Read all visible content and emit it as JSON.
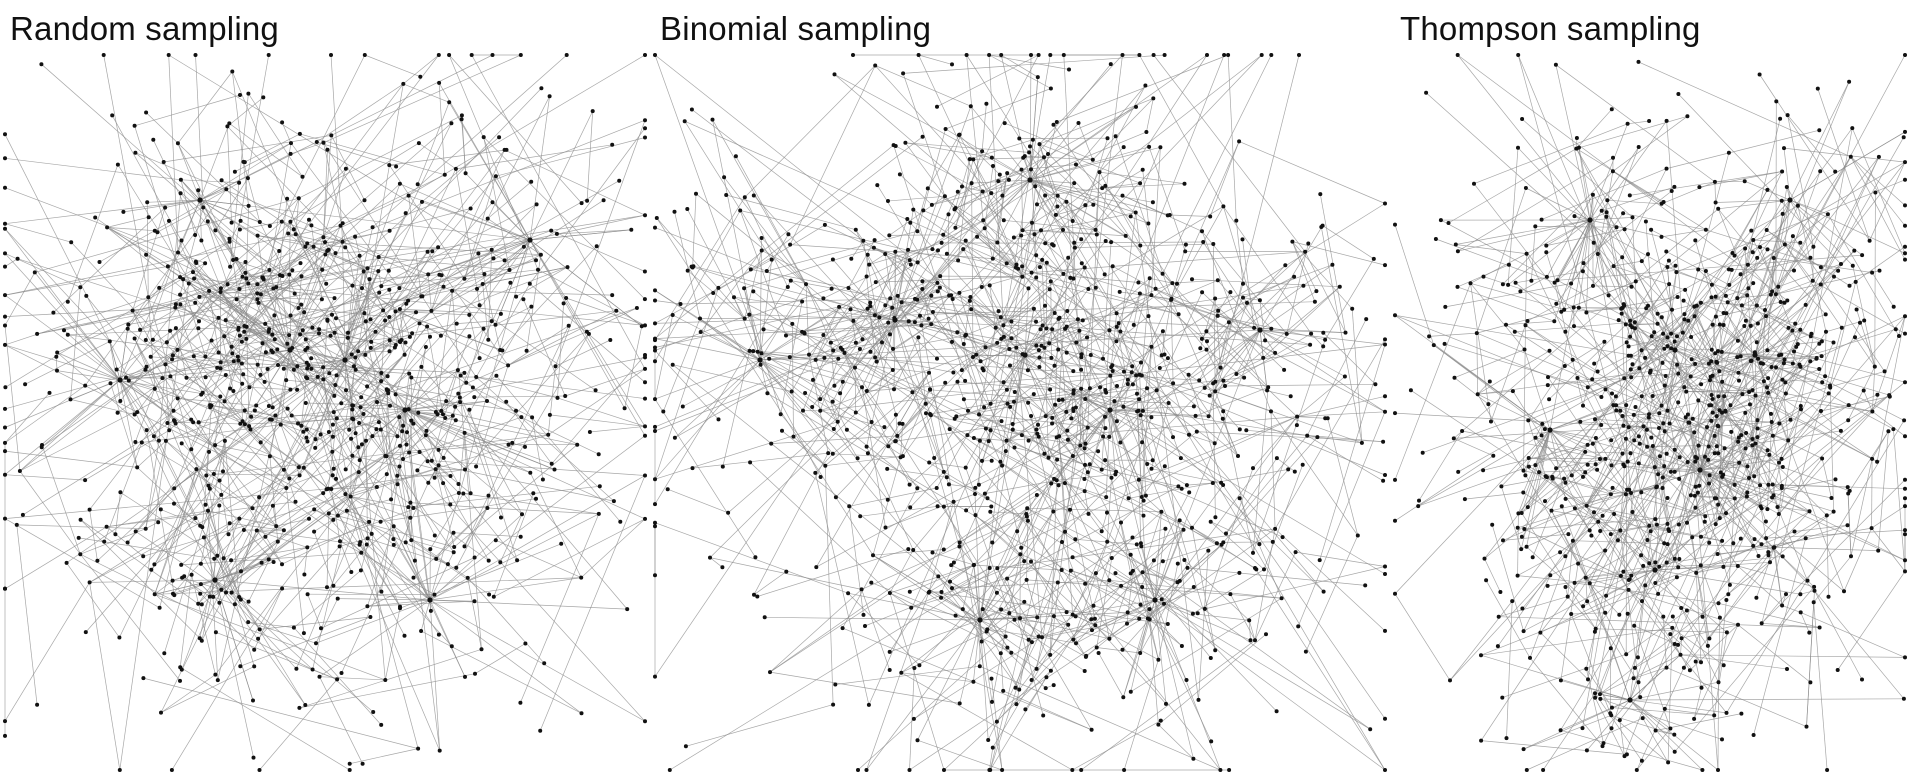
{
  "panels": [
    {
      "title": "Random sampling"
    },
    {
      "title": "Binomial sampling"
    },
    {
      "title": "Thompson sampling"
    }
  ],
  "colors": {
    "background": "#ffffff",
    "node": "#111111",
    "edge": "#8a8a8a",
    "title": "#111111"
  }
}
